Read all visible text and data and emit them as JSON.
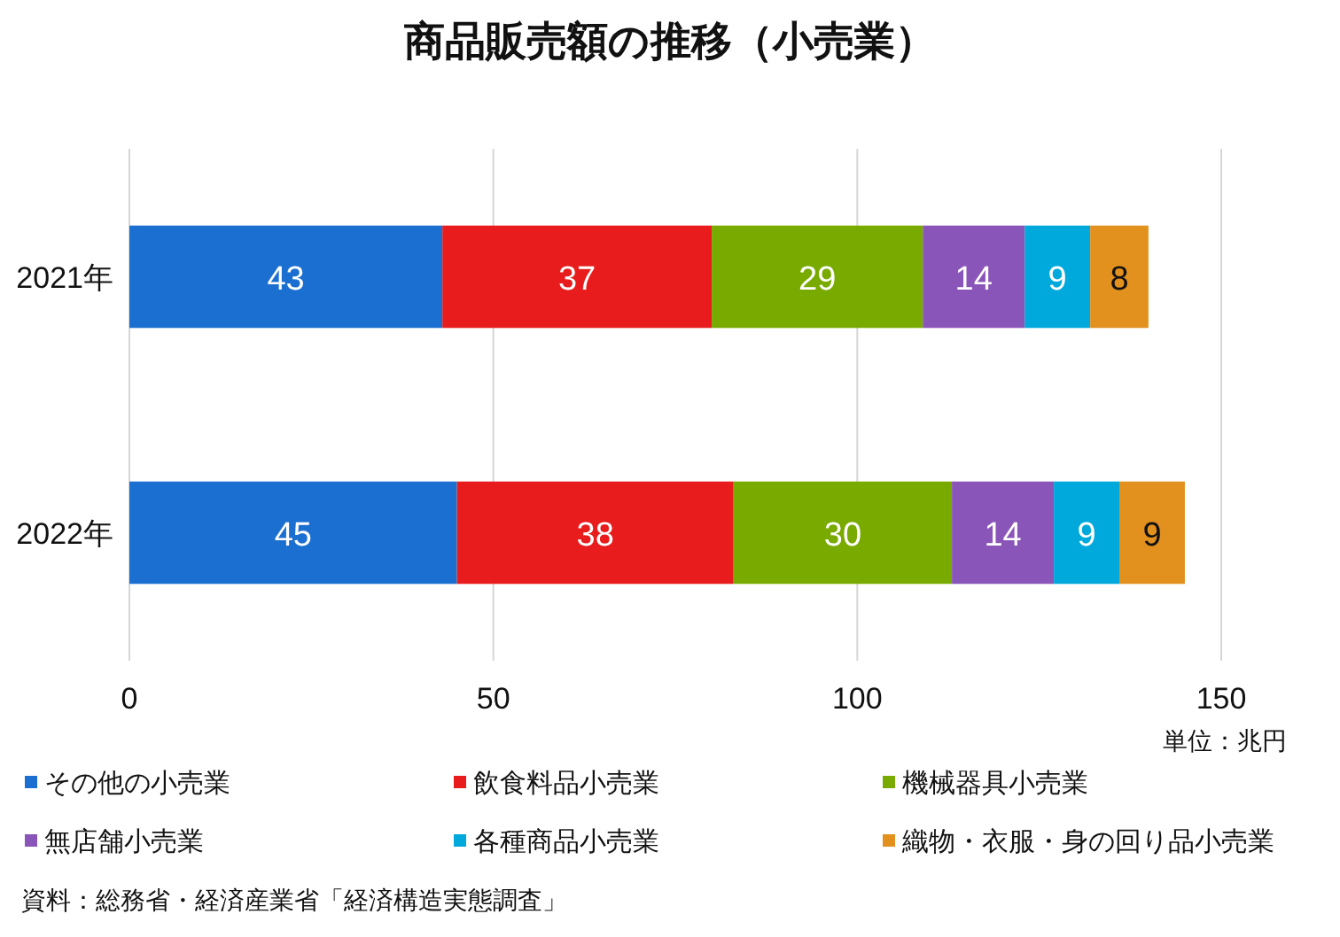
{
  "chart_data": {
    "type": "bar",
    "orientation": "horizontal",
    "stacked": true,
    "title": "商品販売額の推移（小売業）",
    "categories": [
      "2021年",
      "2022年"
    ],
    "series": [
      {
        "name": "その他の小売業",
        "color": "#1b6fd0",
        "values": [
          43,
          45
        ]
      },
      {
        "name": "飲食料品小売業",
        "color": "#e81c1c",
        "values": [
          37,
          38
        ]
      },
      {
        "name": "機械器具小売業",
        "color": "#78aa00",
        "values": [
          29,
          30
        ]
      },
      {
        "name": "無店舗小売業",
        "color": "#8a55b8",
        "values": [
          14,
          14
        ]
      },
      {
        "name": "各種商品小売業",
        "color": "#00a9dc",
        "values": [
          9,
          9
        ]
      },
      {
        "name": "織物・衣服・身の回り品小売業",
        "color": "#e2901e",
        "values": [
          8,
          9
        ]
      }
    ],
    "xlim": [
      0,
      150
    ],
    "xticks": [
      0,
      50,
      100,
      150
    ],
    "grid": "x",
    "legend": "bottom",
    "data_labels": true,
    "annotations": [
      "単位：兆円",
      "資料：総務省・経済産業省「経済構造実態調査」"
    ]
  }
}
